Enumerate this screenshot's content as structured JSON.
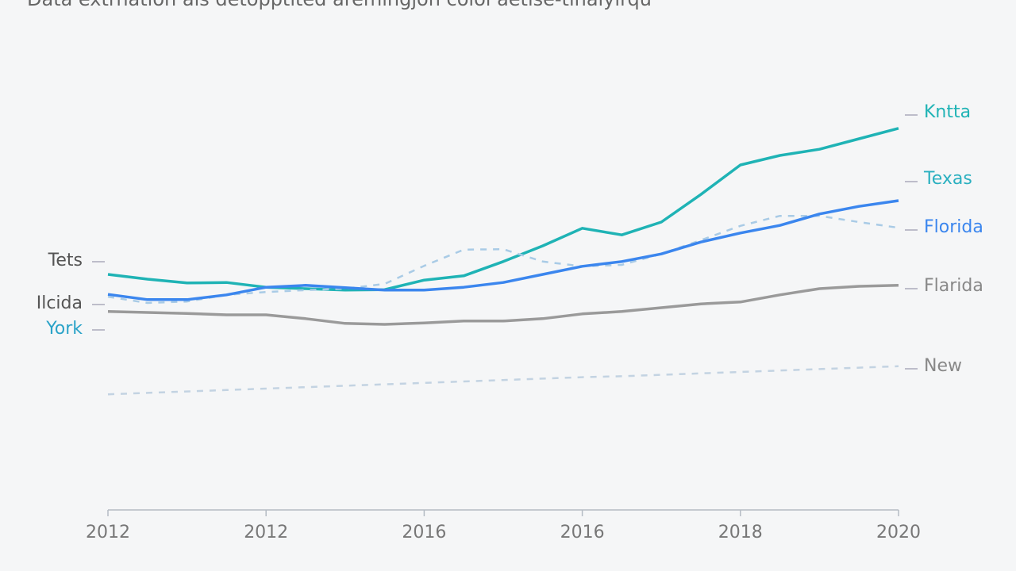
{
  "chart_data": {
    "type": "line",
    "title": "Data extrnation als detopptited aremingjon colol aetise-tinalylrqu",
    "categories": [
      "2012",
      null,
      null,
      null,
      "2012",
      null,
      null,
      null,
      "2016",
      null,
      null,
      null,
      "2016",
      null,
      null,
      null,
      "2018",
      null,
      null,
      null,
      "2020"
    ],
    "ylim": [
      0,
      100
    ],
    "left_labels": [
      "Tets",
      "Ilcida",
      "York"
    ],
    "series": [
      {
        "name": "Kntta",
        "color": "#1fb3b5",
        "style": "solid",
        "values": [
          49,
          48,
          47.2,
          47.3,
          46.3,
          46,
          45.7,
          45.8,
          47.8,
          48.7,
          51.7,
          55,
          58.7,
          57.3,
          60,
          65.8,
          72,
          74,
          75.3,
          77.5,
          79.7
        ]
      },
      {
        "name": "Texas",
        "color": "#a9cbe6",
        "style": "dashed",
        "values": [
          44.3,
          43,
          43.3,
          44.7,
          45.3,
          45.7,
          46,
          47,
          50.8,
          54.2,
          54.3,
          51.7,
          50.7,
          51,
          53.3,
          56.2,
          59.2,
          61.3,
          61.3,
          60,
          58.8
        ]
      },
      {
        "name": "Florida",
        "color": "#3b86ee",
        "style": "solid",
        "values": [
          44.8,
          43.7,
          43.7,
          44.7,
          46.3,
          46.7,
          46.2,
          45.7,
          45.7,
          46.3,
          47.3,
          49,
          50.7,
          51.7,
          53.3,
          55.8,
          57.7,
          59.3,
          61.7,
          63.3,
          64.5
        ]
      },
      {
        "name": "Flarida",
        "color": "#9a9a9a",
        "style": "solid",
        "values": [
          41.2,
          41,
          40.8,
          40.5,
          40.5,
          39.7,
          38.7,
          38.5,
          38.8,
          39.2,
          39.2,
          39.7,
          40.7,
          41.2,
          42,
          42.8,
          43.2,
          44.7,
          46,
          46.5,
          46.7
        ]
      },
      {
        "name": "New",
        "color": "#c3d3e2",
        "style": "dashed",
        "values": [
          23.8,
          24.1,
          24.4,
          24.7,
          25,
          25.3,
          25.6,
          25.9,
          26.2,
          26.5,
          26.8,
          27.1,
          27.4,
          27.6,
          27.9,
          28.2,
          28.5,
          28.8,
          29.1,
          29.4,
          29.7
        ]
      }
    ]
  }
}
